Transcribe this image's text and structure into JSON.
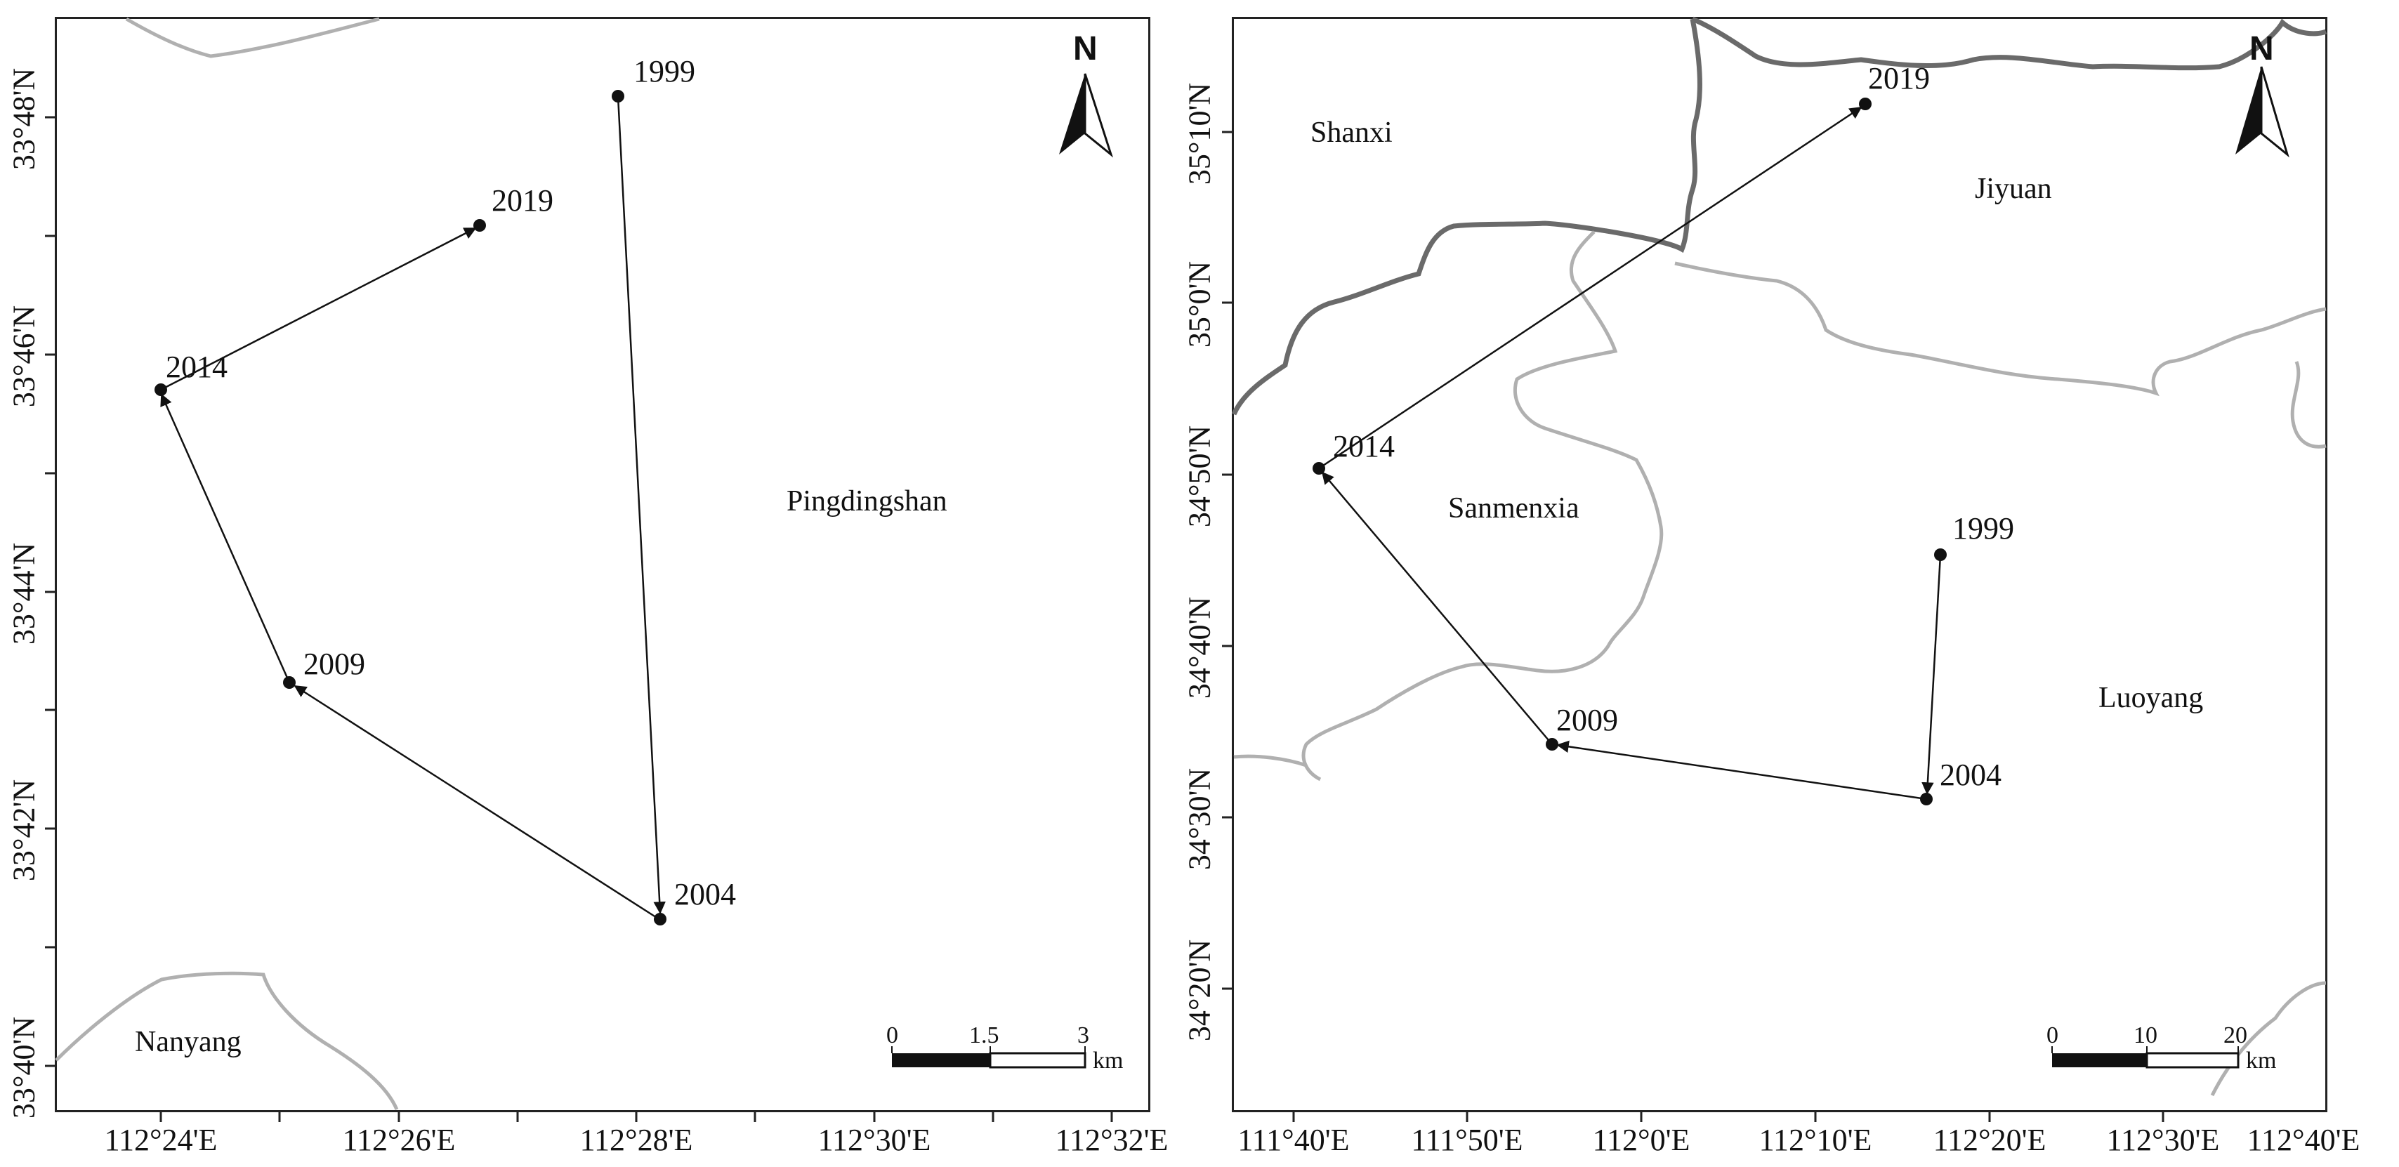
{
  "maps": [
    {
      "id": "left",
      "north_label": "N",
      "y_ticks": [
        "33°48'N",
        "33°46'N",
        "33°44'N",
        "33°42'N",
        "33°40'N"
      ],
      "x_ticks": [
        "112°24'E",
        "112°26'E",
        "112°28'E",
        "112°30'E",
        "112°32'E"
      ],
      "regions": [
        "Pingdingshan",
        "Nanyang"
      ],
      "points": [
        {
          "year": "1999"
        },
        {
          "year": "2004"
        },
        {
          "year": "2009"
        },
        {
          "year": "2014"
        },
        {
          "year": "2019"
        }
      ],
      "scale": {
        "ticks": [
          "0",
          "1.5",
          "3"
        ],
        "unit": "km"
      }
    },
    {
      "id": "right",
      "north_label": "N",
      "y_ticks": [
        "35°10'N",
        "35°0'N",
        "34°50'N",
        "34°40'N",
        "34°30'N",
        "34°20'N"
      ],
      "x_ticks": [
        "111°40'E",
        "111°50'E",
        "112°0'E",
        "112°10'E",
        "112°20'E",
        "112°30'E",
        "112°40'E"
      ],
      "regions": [
        "Shanxi",
        "Jiyuan",
        "Sanmenxia",
        "Luoyang"
      ],
      "points": [
        {
          "year": "1999"
        },
        {
          "year": "2004"
        },
        {
          "year": "2009"
        },
        {
          "year": "2014"
        },
        {
          "year": "2019"
        }
      ],
      "scale": {
        "ticks": [
          "0",
          "10",
          "20"
        ],
        "unit": "km"
      }
    }
  ],
  "colors": {
    "frame": "#222222",
    "boundary_light": "#b0b0b0",
    "boundary_dark": "#6a6a6a",
    "track": "#111111"
  }
}
